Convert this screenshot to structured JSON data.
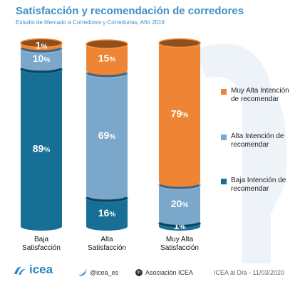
{
  "header": {
    "title": "Satisfacción y recomendación de corredores",
    "subtitle": "Estudio de Mercado a Corredores y Corredurías, Año 2019"
  },
  "colors": {
    "muy_alta": "#ee8534",
    "alta": "#7ba7cb",
    "baja": "#186f96",
    "title": "#3f8fc7"
  },
  "chart_data": {
    "type": "bar",
    "stacked": true,
    "categories": [
      "Baja Satisfacción",
      "Alta Satisfacción",
      "Muy Alta Satisfacción"
    ],
    "category_lines": [
      [
        "Baja",
        "Satisfacción"
      ],
      [
        "Alta",
        "Satisfacción"
      ],
      [
        "Muy Alta",
        "Satisfacción"
      ]
    ],
    "series": [
      {
        "name": "Baja Intención de recomendar",
        "values": [
          89,
          16,
          1
        ]
      },
      {
        "name": "Alta Intención de recomendar",
        "values": [
          10,
          69,
          20
        ]
      },
      {
        "name": "Muy Alta Intención de recomendar",
        "values": [
          1,
          15,
          79
        ]
      }
    ],
    "value_suffix": "%",
    "ylim": [
      0,
      100
    ],
    "legend_position": "right"
  },
  "legend": [
    {
      "key": "muy_alta",
      "label": "Muy Alta Intención de recomendar"
    },
    {
      "key": "alta",
      "label": "Alta Intención de recomendar"
    },
    {
      "key": "baja",
      "label": "Baja Intención de recomendar"
    }
  ],
  "footer": {
    "logo_text": "icea",
    "twitter": "@icea_es",
    "linkedin": "Asociación ICEA",
    "date": "ICEA al Día - 11/03/2020"
  }
}
